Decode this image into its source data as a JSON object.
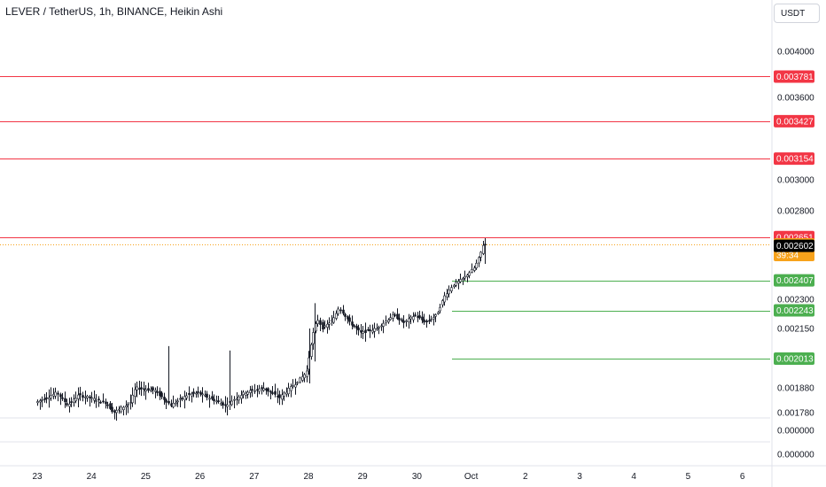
{
  "header": {
    "title": "LEVER / TetherUS, 1h, BINANCE, Heikin Ashi",
    "currency": "USDT"
  },
  "colors": {
    "resistance": "#f23645",
    "support": "#4caf50",
    "candle": "#131722",
    "grid_border": "#e0e3eb",
    "current_price": "#f7a21b",
    "last_close": "#000000"
  },
  "chart_data": {
    "type": "candlestick",
    "title": "LEVER / TetherUS, 1h, BINANCE, Heikin Ashi",
    "symbol": "LEVER / TetherUS",
    "interval": "1h",
    "exchange": "BINANCE",
    "chart_style": "Heikin Ashi",
    "ylim": [
      0.00175,
      0.00415
    ],
    "y_ticks": [
      {
        "value": 0.004,
        "label": "0.004000"
      },
      {
        "value": 0.0036,
        "label": "0.003600"
      },
      {
        "value": 0.003,
        "label": "0.003000"
      },
      {
        "value": 0.0028,
        "label": "0.002800"
      },
      {
        "value": 0.0023,
        "label": "0.002300"
      },
      {
        "value": 0.00215,
        "label": "0.002150"
      },
      {
        "value": 0.00188,
        "label": "0.001880"
      },
      {
        "value": 0.00178,
        "label": "0.001780"
      }
    ],
    "x_ticks": [
      "23",
      "24",
      "25",
      "26",
      "27",
      "28",
      "29",
      "30",
      "Oct",
      "2",
      "3",
      "4",
      "5",
      "6"
    ],
    "sub_panes": [
      {
        "label": "0.000000"
      },
      {
        "label": "0.000000"
      }
    ],
    "resistance_levels": [
      {
        "value": 0.003781,
        "label": "0.003781"
      },
      {
        "value": 0.003427,
        "label": "0.003427"
      },
      {
        "value": 0.003154,
        "label": "0.003154"
      },
      {
        "value": 0.002651,
        "label": "0.002651"
      }
    ],
    "support_levels": [
      {
        "value": 0.002407,
        "label": "0.002407"
      },
      {
        "value": 0.002243,
        "label": "0.002243"
      },
      {
        "value": 0.002013,
        "label": "0.002013"
      }
    ],
    "current_price": {
      "value": 0.00261,
      "label": "0.002610",
      "countdown": "39:34"
    },
    "last_close": {
      "value": 0.002602,
      "label": "0.002602"
    },
    "price_path": [
      {
        "x": 0.0,
        "y": 0.00182
      },
      {
        "x": 0.4,
        "y": 0.00186
      },
      {
        "x": 0.6,
        "y": 0.00181
      },
      {
        "x": 0.8,
        "y": 0.00185
      },
      {
        "x": 1.0,
        "y": 0.00184
      },
      {
        "x": 1.3,
        "y": 0.00182
      },
      {
        "x": 1.45,
        "y": 0.00178
      },
      {
        "x": 1.75,
        "y": 0.00182
      },
      {
        "x": 1.85,
        "y": 0.00188
      },
      {
        "x": 2.2,
        "y": 0.00187
      },
      {
        "x": 2.5,
        "y": 0.00181
      },
      {
        "x": 2.8,
        "y": 0.00185
      },
      {
        "x": 3.0,
        "y": 0.00186
      },
      {
        "x": 3.5,
        "y": 0.00181
      },
      {
        "x": 3.85,
        "y": 0.00186
      },
      {
        "x": 4.2,
        "y": 0.00188
      },
      {
        "x": 4.5,
        "y": 0.00184
      },
      {
        "x": 4.8,
        "y": 0.0019
      },
      {
        "x": 5.0,
        "y": 0.00195
      },
      {
        "x": 5.1,
        "y": 0.0021
      },
      {
        "x": 5.2,
        "y": 0.0022
      },
      {
        "x": 5.3,
        "y": 0.00215
      },
      {
        "x": 5.5,
        "y": 0.0022
      },
      {
        "x": 5.6,
        "y": 0.00226
      },
      {
        "x": 5.8,
        "y": 0.00218
      },
      {
        "x": 6.0,
        "y": 0.00213
      },
      {
        "x": 6.3,
        "y": 0.00215
      },
      {
        "x": 6.6,
        "y": 0.00222
      },
      {
        "x": 6.8,
        "y": 0.00218
      },
      {
        "x": 7.0,
        "y": 0.00222
      },
      {
        "x": 7.2,
        "y": 0.00218
      },
      {
        "x": 7.4,
        "y": 0.00222
      },
      {
        "x": 7.55,
        "y": 0.00232
      },
      {
        "x": 7.7,
        "y": 0.00238
      },
      {
        "x": 7.9,
        "y": 0.00242
      },
      {
        "x": 8.1,
        "y": 0.00248
      },
      {
        "x": 8.2,
        "y": 0.00255
      },
      {
        "x": 8.26,
        "y": 0.00261
      }
    ]
  }
}
